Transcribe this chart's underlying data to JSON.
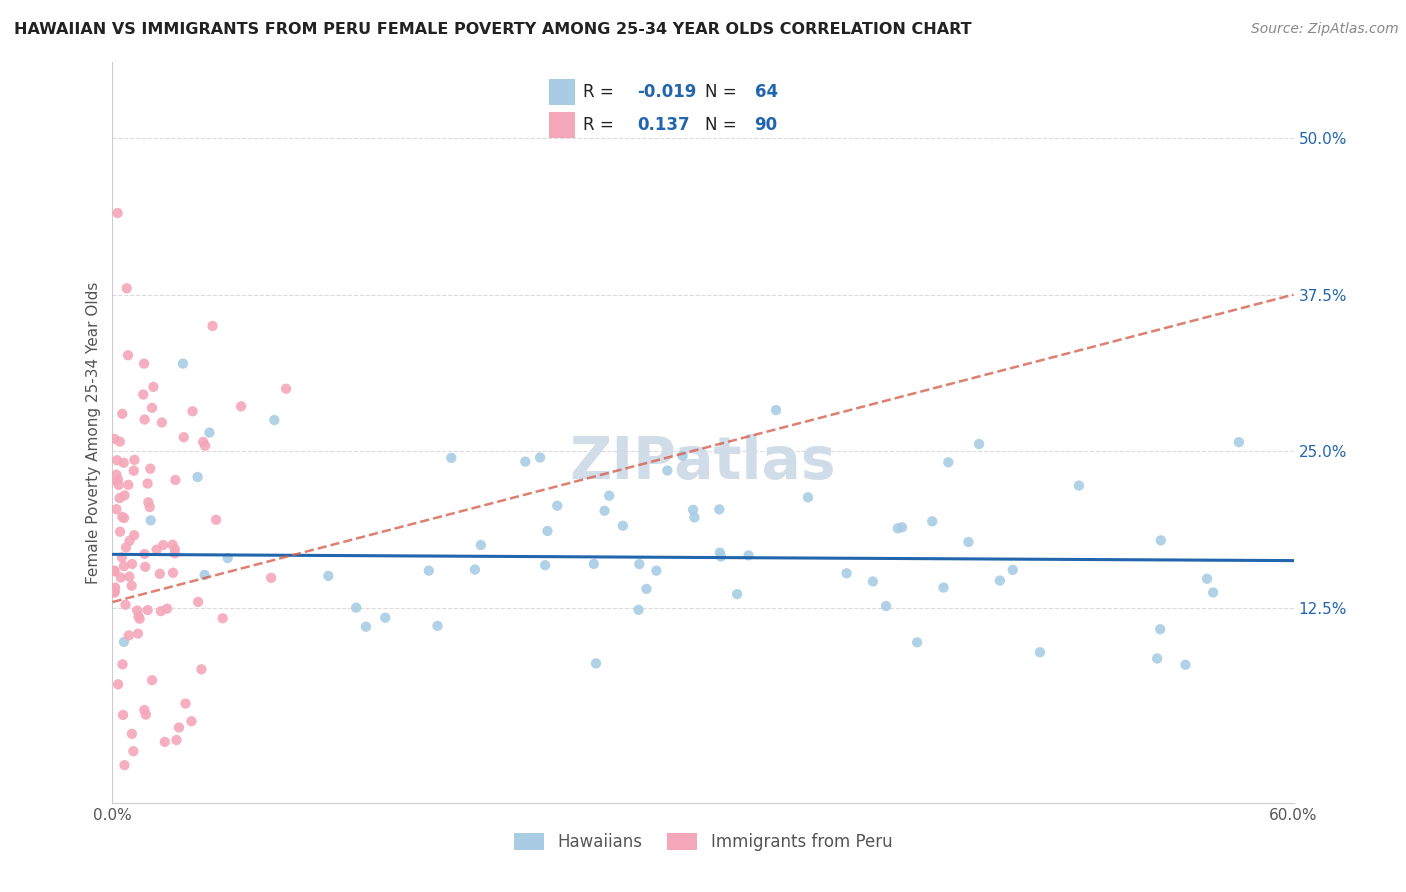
{
  "title": "HAWAIIAN VS IMMIGRANTS FROM PERU FEMALE POVERTY AMONG 25-34 YEAR OLDS CORRELATION CHART",
  "source": "Source: ZipAtlas.com",
  "ylabel": "Female Poverty Among 25-34 Year Olds",
  "xlim": [
    0.0,
    0.6
  ],
  "ylim": [
    -0.03,
    0.56
  ],
  "yticks": [
    0.125,
    0.25,
    0.375,
    0.5
  ],
  "yticklabels": [
    "12.5%",
    "25.0%",
    "37.5%",
    "50.0%"
  ],
  "xticks": [
    0.0,
    0.1,
    0.2,
    0.3,
    0.4,
    0.5,
    0.6
  ],
  "xticklabels": [
    "0.0%",
    "",
    "",
    "",
    "",
    "",
    "60.0%"
  ],
  "hawaiians_R": -0.019,
  "hawaiians_N": 64,
  "peru_R": 0.137,
  "peru_N": 90,
  "hawaiians_color": "#a8cce4",
  "peru_color": "#f4a7b9",
  "hawaiians_line_color": "#2166ac",
  "peru_line_color": "#d6604d",
  "background_color": "#ffffff",
  "grid_color": "#cccccc",
  "zipatlas_color": "#d0dce8",
  "legend_border_color": "#cccccc",
  "r_n_color": "#2166ac",
  "label_color": "#333333",
  "tick_color": "#555555",
  "haw_line_y0": 0.168,
  "haw_line_y1": 0.163,
  "peru_line_y0": 0.13,
  "peru_line_y1": 0.375
}
